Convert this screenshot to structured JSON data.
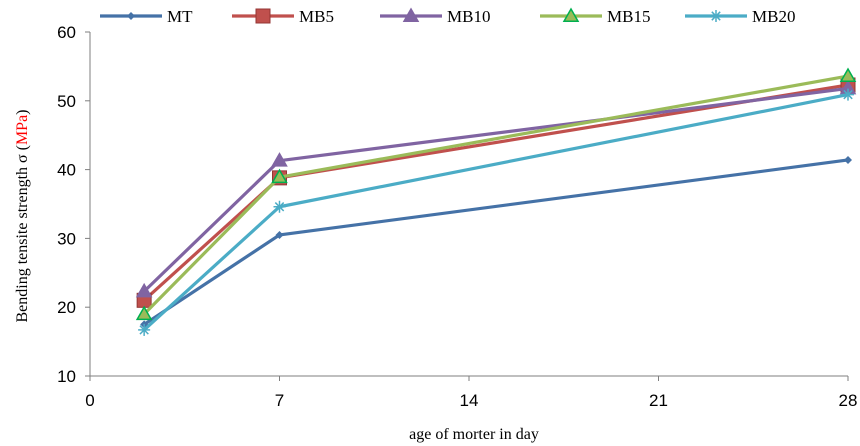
{
  "chart_data": {
    "type": "line",
    "xlabel": "age of morter in day",
    "ylabel": {
      "prefix": "Bending tensite strength  σ (",
      "unit": "MPa",
      "suffix": ")",
      "unit_color": "#ff0000"
    },
    "xlim": [
      0,
      28
    ],
    "ylim": [
      10,
      60
    ],
    "xticks": [
      0,
      7,
      14,
      21,
      28
    ],
    "yticks": [
      10,
      20,
      30,
      40,
      50,
      60
    ],
    "grid": false,
    "legend_position": "top",
    "x": [
      2,
      7,
      28
    ],
    "series": [
      {
        "name": "MT",
        "values": [
          17.5,
          30.5,
          41.4
        ],
        "color": "#4572A7",
        "marker": "diamond"
      },
      {
        "name": "MB5",
        "values": [
          21.0,
          38.8,
          52.3
        ],
        "color": "#C0504D",
        "marker": "square"
      },
      {
        "name": "MB10",
        "values": [
          22.3,
          41.3,
          51.8
        ],
        "color": "#8064A2",
        "marker": "triangle"
      },
      {
        "name": "MB15",
        "values": [
          19.0,
          38.9,
          53.6
        ],
        "color": "#9BBB59",
        "marker": "triangle"
      },
      {
        "name": "MB20",
        "values": [
          16.7,
          34.6,
          50.9
        ],
        "color": "#4BACC6",
        "marker": "star"
      }
    ]
  }
}
